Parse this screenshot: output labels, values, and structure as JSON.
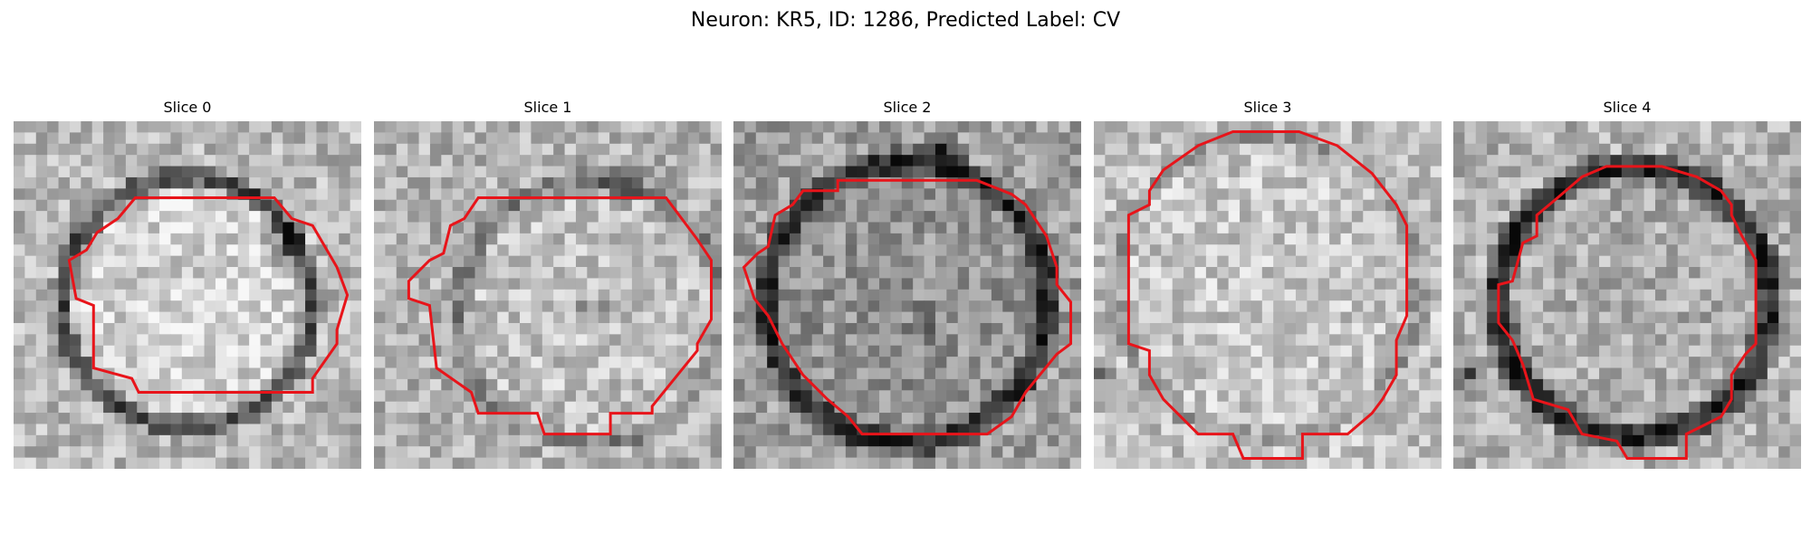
{
  "figure": {
    "title": "Neuron: KR5, ID: 1286, Predicted Label: CV"
  },
  "panels": [
    {
      "title": "Slice 0"
    },
    {
      "title": "Slice 1"
    },
    {
      "title": "Slice 2"
    },
    {
      "title": "Slice 3"
    },
    {
      "title": "Slice 4"
    }
  ],
  "contour_color": "#e8141a",
  "colormap": "gray"
}
